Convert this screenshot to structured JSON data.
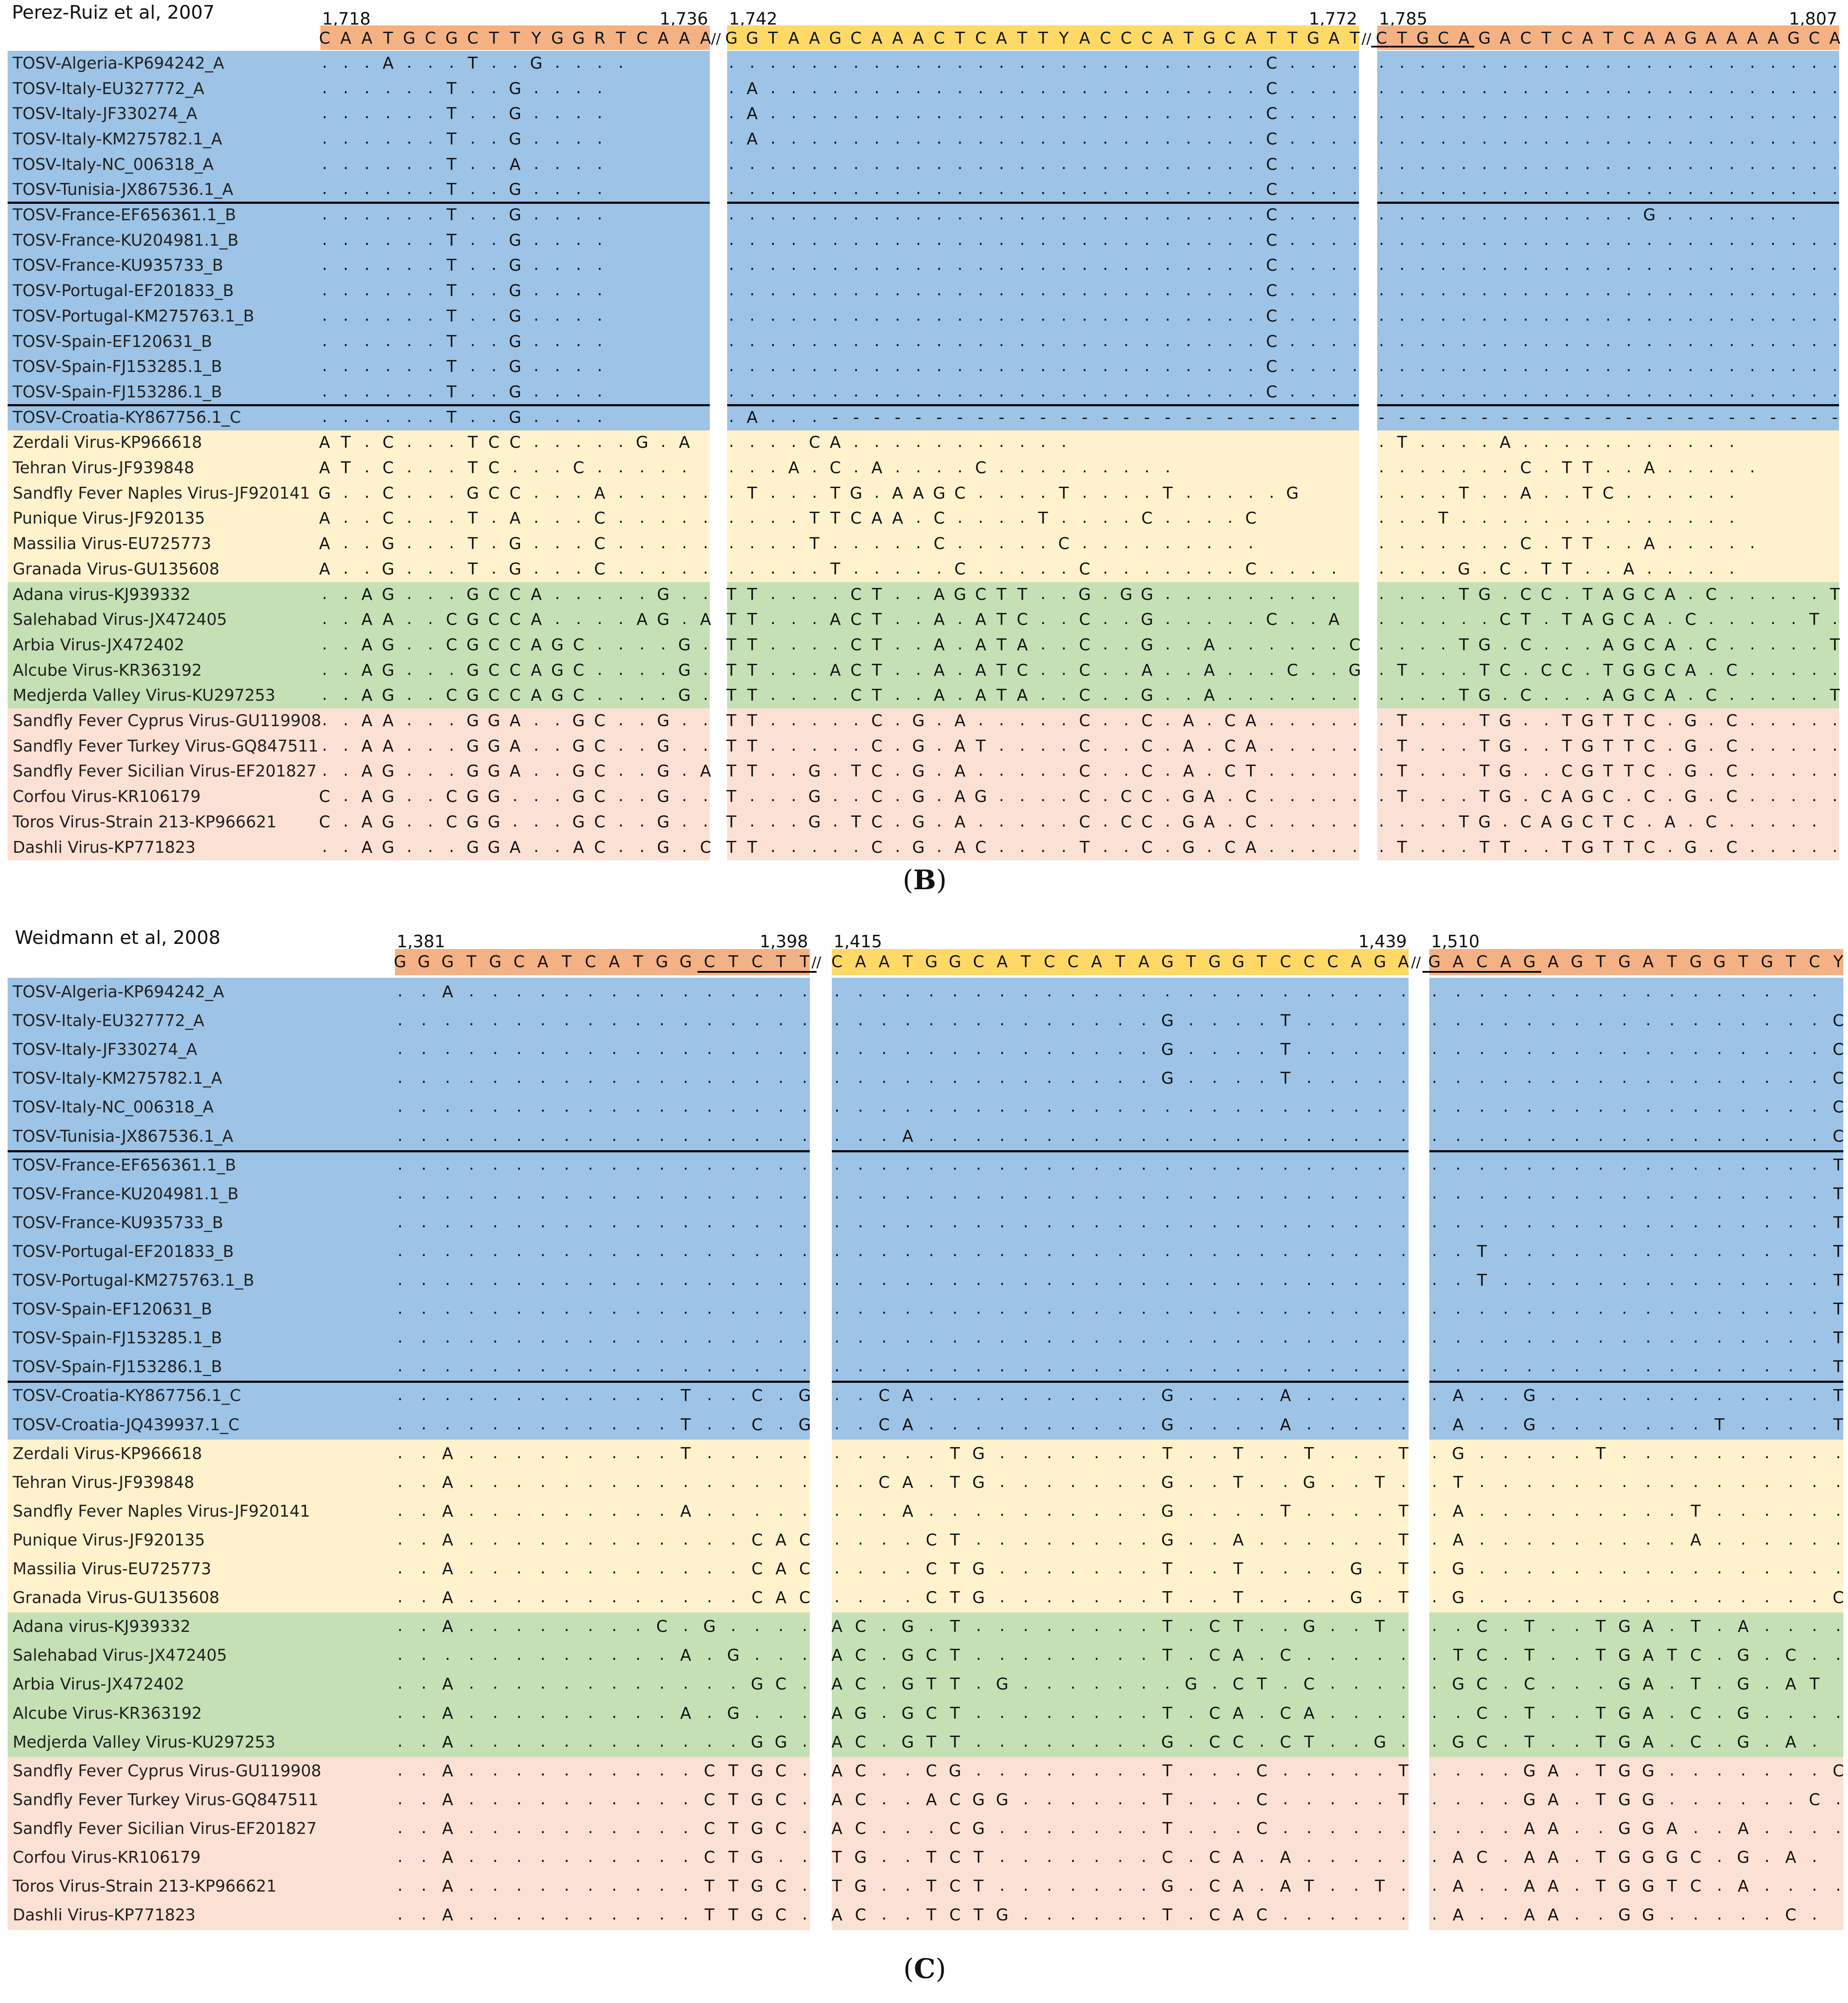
{
  "colors": {
    "blue": "#9dc3e6",
    "yellow": "#fff2cc",
    "green": "#c5e0b4",
    "pink": "#fbe0d4",
    "primer_orange": "#f4b183",
    "primer_yellow": "#ffd966"
  },
  "panels": [
    {
      "id": "B",
      "title": "Perez-Ruiz et al, 2007",
      "label_left": "(",
      "label_letter": "B",
      "label_right": ")",
      "segments": [
        {
          "start": "1,718",
          "end": "1,736",
          "primer": "CAATGCGCTTYGGRTCAAA",
          "primer_color": "orange",
          "underline": null
        },
        {
          "start": "1,742",
          "end": "1,772",
          "primer": "GGTAAGCAAACTCATTYACCCATGCATTGAT",
          "primer_color": "yellow",
          "underline": null
        },
        {
          "start": "1,785",
          "end": "1,807",
          "primer": "CTGCAGACTCATCAAGAAAAGCA",
          "primer_color": "orange",
          "underline": [
            0,
            5
          ]
        }
      ],
      "rows": [
        {
          "name": "TOSV-Algeria-KP694242_A",
          "group": "blue",
          "seqs": [
            "...A...T..G....",
            "..........................C......",
            ".........................."
          ]
        },
        {
          "name": "TOSV-Italy-EU327772_A",
          "group": "blue",
          "seqs": [
            "......T..G....",
            ".A........................C......",
            ".........................."
          ]
        },
        {
          "name": "TOSV-Italy-JF330274_A",
          "group": "blue",
          "seqs": [
            "......T..G....",
            ".A........................C......",
            ".........................."
          ]
        },
        {
          "name": "TOSV-Italy-KM275782.1_A",
          "group": "blue",
          "seqs": [
            "......T..G....",
            ".A........................C......",
            ".........................."
          ]
        },
        {
          "name": "TOSV-Italy-NC_006318_A",
          "group": "blue",
          "seqs": [
            "......T..A....",
            "..........................C......",
            ".........................."
          ]
        },
        {
          "name": "TOSV-Tunisia-JX867536.1_A",
          "group": "blue",
          "seqs": [
            "......T..G....",
            "..........................C......",
            ".........................."
          ]
        },
        {
          "name": "TOSV-France-EF656361.1_B",
          "group": "blue",
          "seqs": [
            "......T..G....",
            "..........................C......",
            ".............G......."
          ]
        },
        {
          "name": "TOSV-France-KU204981.1_B",
          "group": "blue",
          "seqs": [
            "......T..G....",
            "..........................C......",
            ".........................."
          ]
        },
        {
          "name": "TOSV-France-KU935733_B",
          "group": "blue",
          "seqs": [
            "......T..G....",
            "..........................C......",
            ".........................."
          ]
        },
        {
          "name": "TOSV-Portugal-EF201833_B",
          "group": "blue",
          "seqs": [
            "......T..G....",
            "..........................C......",
            ".........................."
          ]
        },
        {
          "name": "TOSV-Portugal-KM275763.1_B",
          "group": "blue",
          "seqs": [
            "......T..G....",
            "..........................C......",
            ".........................."
          ]
        },
        {
          "name": "TOSV-Spain-EF120631_B",
          "group": "blue",
          "seqs": [
            "......T..G....",
            "..........................C......",
            ".........................."
          ]
        },
        {
          "name": "TOSV-Spain-FJ153285.1_B",
          "group": "blue",
          "seqs": [
            "......T..G....",
            "..........................C......",
            ".........................."
          ]
        },
        {
          "name": "TOSV-Spain-FJ153286.1_B",
          "group": "blue",
          "seqs": [
            "......T..G....",
            "..........................C......",
            ".........................."
          ]
        },
        {
          "name": "TOSV-Croatia-KY867756.1_C",
          "group": "blue",
          "seqs": [
            "......T..G....",
            ".A...-------------------------",
            "-------------------------"
          ]
        },
        {
          "name": "Zerdali Virus-KP966618",
          "group": "yellow",
          "seqs": [
            "AT.C...TCC.....G.A",
            "....CA...........",
            ".T....A..........."
          ]
        },
        {
          "name": "Tehran Virus-JF939848",
          "group": "yellow",
          "seqs": [
            "AT.C...TC...C.....",
            "...A.C.A....C.........",
            ".......C.TT..A....."
          ]
        },
        {
          "name": "Sandfly Fever Naples Virus-JF920141",
          "group": "yellow",
          "seqs": [
            "G..C...GCC...A.....A",
            ".T...TG.AAGC....T....T.....G",
            "....T..A..TC......"
          ]
        },
        {
          "name": "Punique Virus-JF920135",
          "group": "yellow",
          "seqs": [
            "A..C...T.A...C.....",
            "....TTCAA.C....T....C....C",
            "...T.............."
          ]
        },
        {
          "name": "Massilia Virus-EU725773",
          "group": "yellow",
          "seqs": [
            "A..G...T.G...C.....",
            "....T.....C.....C.........",
            ".......C.TT..A....."
          ]
        },
        {
          "name": "Granada Virus-GU135608",
          "group": "yellow",
          "seqs": [
            "A..G...T.G...C.....",
            ".....T.....C.....C.......C....",
            "....G.C.TT..A....."
          ]
        },
        {
          "name": "Adana virus-KJ939332",
          "group": "green",
          "seqs": [
            "..AG...GCCA.....G..",
            "TT....CT..AGCTT..G.GG.........",
            "....TG.CC.TAGCA.C.....T."
          ]
        },
        {
          "name": "Salehabad Virus-JX472405",
          "group": "green",
          "seqs": [
            "..AA..CGCCA....AG.A",
            "TT...ACT..A.ATC..C..G.....C..A",
            "......CT.TAGCA.C.....T."
          ]
        },
        {
          "name": "Arbia Virus-JX472402",
          "group": "green",
          "seqs": [
            "..AG..CGCCAGC....G.A",
            "TT....CT..A.ATA..C..G..A......C",
            "....TG.C...AGCA.C.....T."
          ]
        },
        {
          "name": "Alcube Virus-KR363192",
          "group": "green",
          "seqs": [
            "..AG...GCCAGC....G.A",
            "TT...ACT..A.ATC..C..A..A...C..G",
            ".T...TC.CC.TGGCA.C.....T."
          ]
        },
        {
          "name": "Medjerda Valley Virus-KU297253",
          "group": "green",
          "seqs": [
            "..AG..CGCCAGC....G.A",
            "TT....CT..A.ATA..C..G..A.......",
            "....TG.C...AGCA.C.....T."
          ]
        },
        {
          "name": "Sandfly Fever Cyprus Virus-GU119908",
          "group": "pink",
          "seqs": [
            "..AA...GGA..GC..G..",
            "TT.....C.G.A.....C..C.A.CA.....A",
            ".T...TG..TGTTC.G.C....."
          ]
        },
        {
          "name": "Sandfly Fever Turkey Virus-GQ847511",
          "group": "pink",
          "seqs": [
            "..AA...GGA..GC..G..",
            "TT.....C.G.AT....C..C.A.CA.....A",
            ".T...TG..TGTTC.G.C....."
          ]
        },
        {
          "name": "Sandfly Fever Sicilian Virus-EF201827",
          "group": "pink",
          "seqs": [
            "..AG...GGA..GC..G.A",
            "TT..G.TC.G.A.....C..C.A.CT......",
            ".T...TG..CGTTC.G.C....."
          ]
        },
        {
          "name": "Corfou Virus-KR106179",
          "group": "pink",
          "seqs": [
            "C.AG..CGG...GC..G..",
            "T...G..C.G.AG....C.CC.GA.C......",
            ".T...TG.CAGC.C.G.C....."
          ]
        },
        {
          "name": "Toros Virus-Strain 213-KP966621",
          "group": "pink",
          "seqs": [
            "C.AG..CGG...GC..G..",
            "T...G.TC.G.A.....C.CC.GA.C......",
            "....TG.CAGCTC.A.C....."
          ]
        },
        {
          "name": "Dashli Virus-KP771823",
          "group": "pink",
          "seqs": [
            "..AG...GGA..AC..G.C",
            "TT.....C.G.AC....T..C.G.CA.....C",
            ".T...TT..TGTTC.G.C....."
          ]
        }
      ]
    },
    {
      "id": "C",
      "title": "Weidmann et al, 2008",
      "label_left": "(",
      "label_letter": "C",
      "label_right": ")",
      "segments": [
        {
          "start": "1,381",
          "end": "1,398",
          "primer": "GGGTGCATCATGGCTCTT",
          "primer_color": "orange",
          "underline": [
            13,
            18
          ]
        },
        {
          "start": "1,415",
          "end": "1,439",
          "primer": "CAATGGCATCCATAGTGGTCCCAGA",
          "primer_color": "yellow",
          "underline": null
        },
        {
          "start": "1,510",
          "end": "",
          "primer": "GACAGAGTGATGGTGTCY",
          "primer_color": "orange",
          "underline": [
            0,
            5
          ]
        }
      ],
      "rows": [
        {
          "name": "TOSV-Algeria-KP694242_A",
          "group": "blue",
          "seqs": [
            "..A...............",
            ".........................",
            "................."
          ]
        },
        {
          "name": "TOSV-Italy-EU327772_A",
          "group": "blue",
          "seqs": [
            "..................",
            "..............G....T.....",
            ".................C"
          ]
        },
        {
          "name": "TOSV-Italy-JF330274_A",
          "group": "blue",
          "seqs": [
            "..................",
            "..............G....T.....",
            ".................C"
          ]
        },
        {
          "name": "TOSV-Italy-KM275782.1_A",
          "group": "blue",
          "seqs": [
            "..................",
            "..............G....T.....",
            ".................C"
          ]
        },
        {
          "name": "TOSV-Italy-NC_006318_A",
          "group": "blue",
          "seqs": [
            "..................",
            ".........................",
            ".................C"
          ]
        },
        {
          "name": "TOSV-Tunisia-JX867536.1_A",
          "group": "blue",
          "seqs": [
            "..................",
            "...A.....................",
            ".................C"
          ]
        },
        {
          "name": "TOSV-France-EF656361.1_B",
          "group": "blue",
          "seqs": [
            "..................",
            ".........................",
            ".................T"
          ]
        },
        {
          "name": "TOSV-France-KU204981.1_B",
          "group": "blue",
          "seqs": [
            "..................",
            ".........................",
            ".................T"
          ]
        },
        {
          "name": "TOSV-France-KU935733_B",
          "group": "blue",
          "seqs": [
            "..................",
            ".........................",
            ".................T"
          ]
        },
        {
          "name": "TOSV-Portugal-EF201833_B",
          "group": "blue",
          "seqs": [
            "..................",
            ".........................",
            "..T..............T"
          ]
        },
        {
          "name": "TOSV-Portugal-KM275763.1_B",
          "group": "blue",
          "seqs": [
            "..................",
            ".........................",
            "..T..............T"
          ]
        },
        {
          "name": "TOSV-Spain-EF120631_B",
          "group": "blue",
          "seqs": [
            "..................",
            ".........................",
            ".................T"
          ]
        },
        {
          "name": "TOSV-Spain-FJ153285.1_B",
          "group": "blue",
          "seqs": [
            "..................",
            ".........................",
            ".................T"
          ]
        },
        {
          "name": "TOSV-Spain-FJ153286.1_B",
          "group": "blue",
          "seqs": [
            "..................",
            ".........................",
            ".................T"
          ]
        },
        {
          "name": "TOSV-Croatia-KY867756.1_C",
          "group": "blue",
          "seqs": [
            "............T..C.G",
            "..CA..........G....A.....",
            ".A..G............T"
          ]
        },
        {
          "name": "TOSV-Croatia-JQ439937.1_C",
          "group": "blue",
          "seqs": [
            "............T..C.G",
            "..CA..........G....A.....",
            ".A..G.......T....T"
          ]
        },
        {
          "name": "Zerdali Virus-KP966618",
          "group": "yellow",
          "seqs": [
            "..A.........T.....",
            ".....TG.......T..T..T...T",
            ".G.....T.........."
          ]
        },
        {
          "name": "Tehran Virus-JF939848",
          "group": "yellow",
          "seqs": [
            "..A...............",
            "..CA.TG.......G..T..G..T.T",
            ".T................"
          ]
        },
        {
          "name": "Sandfly Fever Naples Virus-JF920141",
          "group": "yellow",
          "seqs": [
            "..A.........A.....",
            "...A..........G....T....T",
            ".A.........T......"
          ]
        },
        {
          "name": "Punique Virus-JF920135",
          "group": "yellow",
          "seqs": [
            "..A............CAC.G",
            "....CT........G..A......T",
            ".A.........A......"
          ]
        },
        {
          "name": "Massilia Virus-EU725773",
          "group": "yellow",
          "seqs": [
            "..A............CAC.A",
            "....CTG.......T..T....G.T",
            ".G................"
          ]
        },
        {
          "name": "Granada Virus-GU135608",
          "group": "yellow",
          "seqs": [
            "..A............CAC.A",
            "....CTG.......T..T....G.T",
            ".G...............CT"
          ]
        },
        {
          "name": "Adana virus-KJ939332",
          "group": "green",
          "seqs": [
            "..A........C.G....",
            "AC.G.T........T.CT..G..T.T",
            "..C.T..TGA.T.A...."
          ]
        },
        {
          "name": "Salehabad Virus-JX472405",
          "group": "green",
          "seqs": [
            "............A.G.....",
            "AC.GCT........T.CA.C.....T",
            ".TC.T..TGATC.G.C.."
          ]
        },
        {
          "name": "Arbia Virus-JX472402",
          "group": "green",
          "seqs": [
            "..A............GC.GG",
            "AC.GTT.G.......G.CT.C.....T",
            ".GC.C...GA.T.G.AT"
          ]
        },
        {
          "name": "Alcube Virus-KR363192",
          "group": "green",
          "seqs": [
            "..A.........A.G....C",
            "AG.GCT........T.CA.CA.....T",
            "..C.T..TGA.C.G...."
          ]
        },
        {
          "name": "Medjerda Valley Virus-KU297253",
          "group": "green",
          "seqs": [
            "..A............GG.GA",
            "AC.GTT........G.CC.CT..G.T",
            ".GC.T..TGA.C.G.A."
          ]
        },
        {
          "name": "Sandfly Fever Cyprus Virus-GU119908",
          "group": "pink",
          "seqs": [
            "..A..........CTGC.G",
            "AC..CG........T...C.....T.G",
            "....GA.TGG.......CT"
          ]
        },
        {
          "name": "Sandfly Fever Turkey Virus-GQ847511",
          "group": "pink",
          "seqs": [
            "..A..........CTGC.G",
            "AC..ACGG......T...C.....T.G",
            "....GA.TGG......C."
          ]
        },
        {
          "name": "Sandfly Fever Sicilian Virus-EF201827",
          "group": "pink",
          "seqs": [
            "..A..........CTGC.A",
            "AC...CG.......T...C.......G",
            "....AA..GGA..A...."
          ]
        },
        {
          "name": "Corfou Virus-KR106179",
          "group": "pink",
          "seqs": [
            "..A..........CTG..C",
            "TG..TCT.......C.CA.A.....G",
            ".AC.AA.TGGGC.G.A."
          ]
        },
        {
          "name": "Toros Virus-Strain 213-KP966621",
          "group": "pink",
          "seqs": [
            "..A..........TTGC..",
            "TG..TCT.......G.CA.AT..T.G",
            ".A..AA.TGGTC.A...."
          ]
        },
        {
          "name": "Dashli Virus-KP771823",
          "group": "pink",
          "seqs": [
            "..A..........TTGC..",
            "AC..TCTG......T.CAC......G",
            ".A..AA..GG.....C."
          ]
        }
      ]
    }
  ]
}
